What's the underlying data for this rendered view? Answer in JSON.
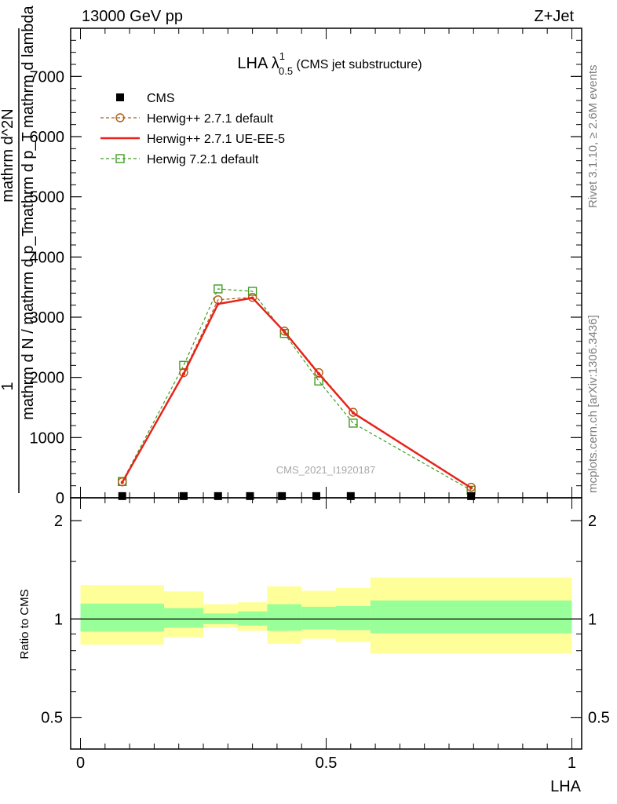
{
  "header": {
    "left": "13000 GeV pp",
    "right": "Z+Jet"
  },
  "side_text": {
    "upper": "Rivet 3.1.10, ≥ 2.6M events",
    "lower": "mcplots.cern.ch [arXiv:1306.3436]"
  },
  "watermark": "CMS_2021_I1920187",
  "title": {
    "main": "LHA λ",
    "sup": "1",
    "sub": "0.5",
    "suffix": " (CMS jet substructure)"
  },
  "ylabel_main": {
    "numerator_left": "1",
    "denominator": "mathrm d N / mathrm d p_T",
    "fraction_num": "mathrm d^2N",
    "fraction_den": "mathrm d p_T mathrm d lambda"
  },
  "ratio_ylabel": "Ratio to CMS",
  "xlabel": "LHA",
  "legend": [
    {
      "label": "CMS",
      "marker": "filled-square",
      "color": "#000000"
    },
    {
      "label": "Herwig++ 2.7.1 default",
      "marker": "open-circle",
      "color": "#b05a10",
      "dash": true
    },
    {
      "label": "Herwig++ 2.7.1 UE-EE-5",
      "marker": "line",
      "color": "#e8221a",
      "dash": false
    },
    {
      "label": "Herwig 7.2.1 default",
      "marker": "open-square",
      "color": "#3f9c23",
      "dash": true
    }
  ],
  "chart_data": {
    "type": "line",
    "main": {
      "xlim": [
        -0.02,
        1.02
      ],
      "ylim": [
        0,
        7800
      ],
      "yticks": [
        0,
        1000,
        2000,
        3000,
        4000,
        5000,
        6000,
        7000
      ],
      "ytick_labels": [
        "0",
        "1000",
        "2000",
        "3000",
        "4000",
        "5000",
        "6000",
        "7000"
      ]
    },
    "ratio": {
      "ylim": [
        0.4,
        2.35
      ],
      "log": true,
      "yticks": [
        0.5,
        1,
        2
      ],
      "ytick_labels": [
        "0.5",
        "1",
        "2"
      ]
    },
    "xticks": [
      0,
      0.5,
      1
    ],
    "xtick_labels": [
      "0",
      "0.5",
      "1"
    ],
    "cms": {
      "x": [
        0.085,
        0.21,
        0.28,
        0.345,
        0.41,
        0.48,
        0.55,
        0.795
      ],
      "y": [
        2,
        2,
        2,
        2,
        2,
        2,
        2,
        2
      ]
    },
    "series": [
      {
        "name": "Herwig++ 2.7.1 default",
        "color": "#b05a10",
        "dash": true,
        "marker": "circle",
        "x": [
          0.085,
          0.21,
          0.28,
          0.35,
          0.415,
          0.485,
          0.555,
          0.795
        ],
        "y": [
          265,
          2080,
          3290,
          3330,
          2770,
          2080,
          1420,
          175
        ]
      },
      {
        "name": "Herwig++ 2.7.1 UE-EE-5",
        "color": "#e8221a",
        "dash": false,
        "marker": "none",
        "x": [
          0.085,
          0.21,
          0.28,
          0.35,
          0.415,
          0.485,
          0.555,
          0.795
        ],
        "y": [
          255,
          2060,
          3220,
          3320,
          2760,
          2060,
          1410,
          165
        ]
      },
      {
        "name": "Herwig 7.2.1 default",
        "color": "#3f9c23",
        "dash": true,
        "marker": "square",
        "x": [
          0.085,
          0.21,
          0.28,
          0.35,
          0.415,
          0.485,
          0.555,
          0.795
        ],
        "y": [
          270,
          2200,
          3470,
          3430,
          2730,
          1940,
          1240,
          125
        ]
      }
    ],
    "ratio_bands": [
      {
        "x0": 0.0,
        "x1": 0.17,
        "inner": [
          0.915,
          1.115
        ],
        "outer": [
          0.835,
          1.27
        ]
      },
      {
        "x0": 0.17,
        "x1": 0.25,
        "inner": [
          0.94,
          1.08
        ],
        "outer": [
          0.88,
          1.215
        ]
      },
      {
        "x0": 0.25,
        "x1": 0.32,
        "inner": [
          0.965,
          1.04
        ],
        "outer": [
          0.94,
          1.11
        ]
      },
      {
        "x0": 0.32,
        "x1": 0.38,
        "inner": [
          0.955,
          1.055
        ],
        "outer": [
          0.92,
          1.125
        ]
      },
      {
        "x0": 0.38,
        "x1": 0.45,
        "inner": [
          0.92,
          1.11
        ],
        "outer": [
          0.84,
          1.26
        ]
      },
      {
        "x0": 0.45,
        "x1": 0.52,
        "inner": [
          0.93,
          1.09
        ],
        "outer": [
          0.87,
          1.22
        ]
      },
      {
        "x0": 0.52,
        "x1": 0.59,
        "inner": [
          0.925,
          1.095
        ],
        "outer": [
          0.85,
          1.245
        ]
      },
      {
        "x0": 0.59,
        "x1": 1.0,
        "inner": [
          0.905,
          1.14
        ],
        "outer": [
          0.785,
          1.34
        ]
      }
    ],
    "ratio_reference": 1,
    "band_colors": {
      "inner": "#99ff99",
      "outer": "#ffff99"
    }
  }
}
